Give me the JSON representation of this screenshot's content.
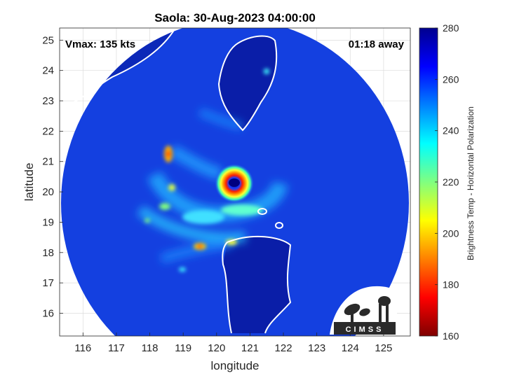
{
  "chart_data": {
    "type": "heatmap",
    "title": "Saola: 30-Aug-2023 04:00:00",
    "xlabel": "longitude",
    "ylabel": "latitude",
    "xlim": [
      115.3,
      125.8
    ],
    "ylim": [
      15.25,
      25.4
    ],
    "xticks": [
      116,
      117,
      118,
      119,
      120,
      121,
      122,
      123,
      124,
      125
    ],
    "yticks": [
      16,
      17,
      18,
      19,
      20,
      21,
      22,
      23,
      24,
      25
    ],
    "grid": true,
    "annotations": {
      "vmax": "Vmax: 135 kts",
      "time_offset": "01:18 away"
    },
    "storm_center": {
      "lon": 120.45,
      "lat": 20.25
    },
    "colorbar": {
      "label": "Brightness Temp - Horizontal Polarization",
      "range": [
        160,
        280
      ],
      "ticks": [
        160,
        180,
        200,
        220,
        240,
        260,
        280
      ],
      "colors": [
        "#7f0000",
        "#ff0000",
        "#ff8000",
        "#ffff00",
        "#80ff80",
        "#00ffff",
        "#0080ff",
        "#0000ff",
        "#00008f"
      ]
    },
    "coastlines": [
      "Taiwan",
      "Luzon",
      "Southern China coast"
    ],
    "logo": "CIMSS"
  },
  "colors": {
    "swath_background": "#1440e0",
    "land_background": "#0a1ea8",
    "coastline": "#ffffff"
  }
}
